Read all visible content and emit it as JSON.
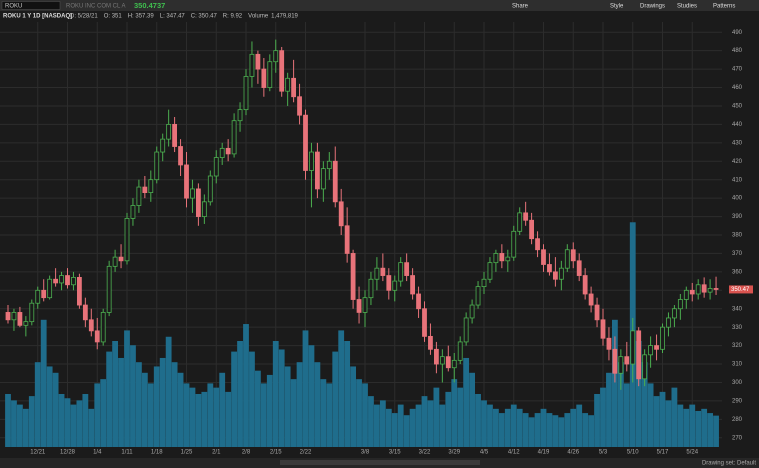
{
  "toolbar": {
    "symbol": "ROKU",
    "company": "ROKU INC COM CL A",
    "last": "350.4737",
    "buttons": [
      "Share",
      "Style",
      "Drawings",
      "Studies",
      "Patterns"
    ]
  },
  "header": {
    "label": "ROKU 1 Y 1D [NASDAQ]",
    "fields": [
      "D: 5/28/21",
      "O: 351",
      "H: 357.39",
      "L: 347.47",
      "C: 350.47",
      "R: 9.92"
    ],
    "volume_label": "Volume",
    "volume_value": "1,479,819"
  },
  "footer": {
    "drawing_set": "Drawing set: Default"
  },
  "chart_data": {
    "type": "candlestick",
    "categories": [
      null,
      null,
      null,
      null,
      null,
      "12/21",
      null,
      null,
      null,
      null,
      "12/28",
      null,
      null,
      null,
      null,
      "1/4",
      null,
      null,
      null,
      null,
      "1/11",
      null,
      null,
      null,
      null,
      "1/18",
      null,
      null,
      null,
      null,
      "1/25",
      null,
      null,
      null,
      null,
      "2/1",
      null,
      null,
      null,
      null,
      "2/8",
      null,
      null,
      null,
      null,
      "2/15",
      null,
      null,
      null,
      null,
      "2/22",
      null,
      null,
      null,
      null,
      null,
      null,
      null,
      null,
      null,
      "3/8",
      null,
      null,
      null,
      null,
      "3/15",
      null,
      null,
      null,
      null,
      "3/22",
      null,
      null,
      null,
      null,
      "3/29",
      null,
      null,
      null,
      null,
      "4/5",
      null,
      null,
      null,
      null,
      "4/12",
      null,
      null,
      null,
      null,
      "4/19",
      null,
      null,
      null,
      null,
      "4/26",
      null,
      null,
      null,
      null,
      "5/3",
      null,
      null,
      null,
      null,
      "5/10",
      null,
      null,
      null,
      null,
      "5/17",
      null,
      null,
      null,
      null,
      "5/24",
      null,
      null,
      null,
      null
    ],
    "ohlc": {
      "open": [
        338,
        334,
        338,
        331,
        333,
        343,
        350,
        346,
        356,
        354,
        358,
        353,
        357,
        342,
        334,
        328,
        322,
        338,
        363,
        368,
        366,
        389,
        396,
        406,
        403,
        410,
        425,
        432,
        440,
        428,
        418,
        400,
        405,
        390,
        398,
        412,
        422,
        427,
        424,
        442,
        448,
        466,
        478,
        470,
        460,
        474,
        480,
        458,
        465,
        455,
        445,
        415,
        425,
        405,
        416,
        420,
        398,
        385,
        370,
        345,
        338,
        346,
        356,
        362,
        358,
        350,
        355,
        365,
        358,
        348,
        340,
        325,
        318,
        310,
        314,
        308,
        312,
        322,
        335,
        342,
        352,
        356,
        365,
        370,
        366,
        368,
        382,
        392,
        388,
        378,
        372,
        364,
        360,
        356,
        362,
        372,
        366,
        358,
        348,
        342,
        334,
        324,
        318,
        305,
        314,
        310,
        328,
        302,
        315,
        320,
        318,
        330,
        335,
        340,
        345,
        350,
        348,
        353,
        349,
        351
      ],
      "high": [
        342,
        340,
        341,
        336,
        345,
        352,
        356,
        358,
        362,
        360,
        362,
        360,
        359,
        346,
        340,
        335,
        340,
        366,
        372,
        375,
        392,
        400,
        410,
        412,
        415,
        428,
        435,
        448,
        444,
        432,
        425,
        410,
        408,
        402,
        415,
        426,
        430,
        432,
        446,
        452,
        470,
        485,
        480,
        476,
        478,
        486,
        482,
        468,
        475,
        462,
        448,
        430,
        430,
        420,
        425,
        428,
        405,
        395,
        372,
        352,
        350,
        360,
        368,
        370,
        362,
        358,
        368,
        370,
        362,
        352,
        344,
        332,
        322,
        318,
        320,
        316,
        325,
        338,
        345,
        355,
        360,
        368,
        372,
        375,
        372,
        385,
        395,
        398,
        392,
        382,
        375,
        370,
        368,
        366,
        375,
        376,
        370,
        362,
        352,
        346,
        340,
        330,
        325,
        318,
        322,
        335,
        330,
        318,
        325,
        326,
        332,
        338,
        342,
        348,
        352,
        354,
        356,
        357,
        356,
        357.39
      ],
      "low": [
        332,
        328,
        330,
        325,
        331,
        340,
        344,
        345,
        352,
        350,
        351,
        350,
        340,
        330,
        325,
        318,
        320,
        336,
        360,
        362,
        364,
        385,
        392,
        400,
        398,
        408,
        420,
        428,
        425,
        412,
        395,
        392,
        385,
        386,
        396,
        408,
        418,
        420,
        422,
        436,
        445,
        460,
        462,
        455,
        458,
        468,
        455,
        450,
        452,
        440,
        410,
        395,
        400,
        398,
        410,
        395,
        380,
        365,
        340,
        332,
        330,
        342,
        350,
        355,
        345,
        344,
        352,
        355,
        345,
        335,
        322,
        315,
        305,
        300,
        306,
        300,
        310,
        320,
        332,
        340,
        348,
        354,
        360,
        362,
        360,
        366,
        380,
        385,
        375,
        368,
        360,
        358,
        352,
        350,
        360,
        362,
        355,
        345,
        338,
        330,
        320,
        312,
        300,
        296,
        306,
        300,
        298,
        298,
        308,
        312,
        316,
        325,
        330,
        334,
        340,
        344,
        345,
        346,
        345,
        347.47
      ],
      "close": [
        334,
        338,
        331,
        333,
        343,
        350,
        346,
        356,
        354,
        358,
        353,
        357,
        342,
        334,
        328,
        322,
        338,
        363,
        368,
        366,
        389,
        396,
        406,
        403,
        410,
        425,
        432,
        440,
        428,
        418,
        400,
        405,
        390,
        398,
        412,
        422,
        427,
        424,
        442,
        448,
        466,
        478,
        470,
        460,
        474,
        480,
        458,
        465,
        455,
        445,
        415,
        425,
        405,
        416,
        420,
        398,
        385,
        370,
        345,
        338,
        346,
        356,
        362,
        358,
        350,
        355,
        365,
        358,
        348,
        340,
        325,
        318,
        310,
        314,
        308,
        312,
        322,
        335,
        342,
        352,
        356,
        365,
        370,
        366,
        368,
        382,
        392,
        388,
        378,
        372,
        364,
        360,
        356,
        362,
        372,
        366,
        358,
        348,
        342,
        334,
        324,
        318,
        305,
        314,
        310,
        328,
        302,
        315,
        320,
        318,
        330,
        335,
        340,
        345,
        350,
        348,
        353,
        349,
        351,
        350.47
      ]
    },
    "volume": [
      2500000,
      2200000,
      2000000,
      1800000,
      2400000,
      4000000,
      6000000,
      3800000,
      3500000,
      2500000,
      2300000,
      2000000,
      2200000,
      2500000,
      1800000,
      3000000,
      3200000,
      4500000,
      5000000,
      4200000,
      5500000,
      4800000,
      4000000,
      3500000,
      3000000,
      3800000,
      4200000,
      5200000,
      4000000,
      3500000,
      3000000,
      2800000,
      2500000,
      2600000,
      3000000,
      2800000,
      3500000,
      2600000,
      4500000,
      5000000,
      5800000,
      4500000,
      3600000,
      3000000,
      3400000,
      5000000,
      4600000,
      3800000,
      3200000,
      4000000,
      5500000,
      4800000,
      4000000,
      3200000,
      3000000,
      4500000,
      5500000,
      5000000,
      3800000,
      3200000,
      3000000,
      2400000,
      2000000,
      2200000,
      1800000,
      1600000,
      2000000,
      1500000,
      1800000,
      2000000,
      2400000,
      2200000,
      2800000,
      2000000,
      2600000,
      3200000,
      2800000,
      4200000,
      3500000,
      2500000,
      2200000,
      2000000,
      1800000,
      1600000,
      1800000,
      2000000,
      1800000,
      1600000,
      1400000,
      1600000,
      1800000,
      1600000,
      1500000,
      1400000,
      1600000,
      1800000,
      2000000,
      1600000,
      1500000,
      2500000,
      2800000,
      3500000,
      6000000,
      4000000,
      3000000,
      10600000,
      5000000,
      4000000,
      3000000,
      2400000,
      2600000,
      2200000,
      2800000,
      2000000,
      1800000,
      2000000,
      1700000,
      1800000,
      1600000,
      1479819
    ],
    "last_price_label": "350.47",
    "ylim": [
      265,
      495
    ],
    "yticks": [
      270,
      280,
      290,
      300,
      310,
      320,
      330,
      340,
      350,
      360,
      370,
      380,
      390,
      400,
      410,
      420,
      430,
      440,
      450,
      460,
      470,
      480,
      490
    ],
    "y2lim": [
      0,
      20000000
    ],
    "grid": true,
    "up_color": "#4caf50",
    "down_color": "#e8737a",
    "volume_color": "#1f6d8c"
  }
}
